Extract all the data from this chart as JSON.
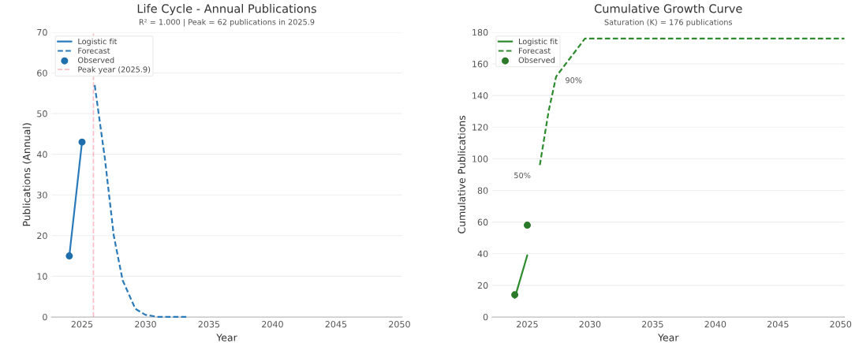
{
  "chart_data": [
    {
      "type": "line",
      "title": "Life Cycle - Annual Publications",
      "subtitle": "R² = 1.000 | Peak = 62 publications in 2025.9",
      "xlabel": "Year",
      "ylabel": "Publications (Annual)",
      "xlim": [
        2022.6,
        2050.2
      ],
      "xticks": [
        2025,
        2030,
        2035,
        2040,
        2045,
        2050
      ],
      "ylim": [
        0,
        70
      ],
      "yticks": [
        0,
        10,
        20,
        30,
        40,
        50,
        60,
        70
      ],
      "grid": "y",
      "legend": "top left",
      "series": [
        {
          "name": "Logistic fit",
          "color": "#2b7bba",
          "line_style": "solid",
          "x": [
            2024,
            2025
          ],
          "values": [
            15,
            43
          ]
        },
        {
          "name": "Forecast",
          "color": "#2b7bba",
          "line_style": "dashed",
          "x": [
            2026.0,
            2026.8,
            2027.5,
            2028.2,
            2029.2,
            2030.0,
            2031.0,
            2033.3
          ],
          "values": [
            57,
            39,
            20,
            9,
            2,
            0.5,
            0,
            0
          ]
        },
        {
          "name": "Observed",
          "type": "scatter",
          "color": "#1f6fad",
          "marker": "circle",
          "x": [
            2024,
            2025
          ],
          "values": [
            15,
            43
          ]
        }
      ],
      "ref_lines": [
        {
          "axis": "x",
          "value": 2025.9,
          "label": "Peak year (2025.9)",
          "color": "#e8485a",
          "line_style": "dashed"
        }
      ]
    },
    {
      "type": "line",
      "title": "Cumulative Growth Curve",
      "subtitle": "Saturation (K) = 176 publications",
      "xlabel": "Year",
      "ylabel": "Cumulative Publications",
      "xlim": [
        2022.2,
        2050.3
      ],
      "xticks": [
        2025,
        2030,
        2035,
        2040,
        2045,
        2050
      ],
      "ylim": [
        0,
        180
      ],
      "yticks": [
        0,
        20,
        40,
        60,
        80,
        100,
        120,
        140,
        160,
        180
      ],
      "grid": "y",
      "legend": "top left",
      "series": [
        {
          "name": "Logistic fit",
          "color": "#2e8b2e",
          "line_style": "solid",
          "x": [
            2024,
            2025
          ],
          "values": [
            12,
            39
          ]
        },
        {
          "name": "Forecast",
          "color": "#2e8b2e",
          "line_style": "dashed",
          "x": [
            2026.0,
            2026.7,
            2027.3,
            2029.6,
            2050.3
          ],
          "values": [
            96,
            130,
            152,
            176,
            176
          ]
        },
        {
          "name": "Observed",
          "type": "scatter",
          "color": "#2a7a2a",
          "marker": "circle",
          "x": [
            2024,
            2025
          ],
          "values": [
            14,
            58
          ]
        }
      ],
      "annotations": [
        {
          "text": "50%",
          "x": 2026.0,
          "y": 96
        },
        {
          "text": "90%",
          "x": 2027.3,
          "y": 152
        }
      ]
    }
  ]
}
